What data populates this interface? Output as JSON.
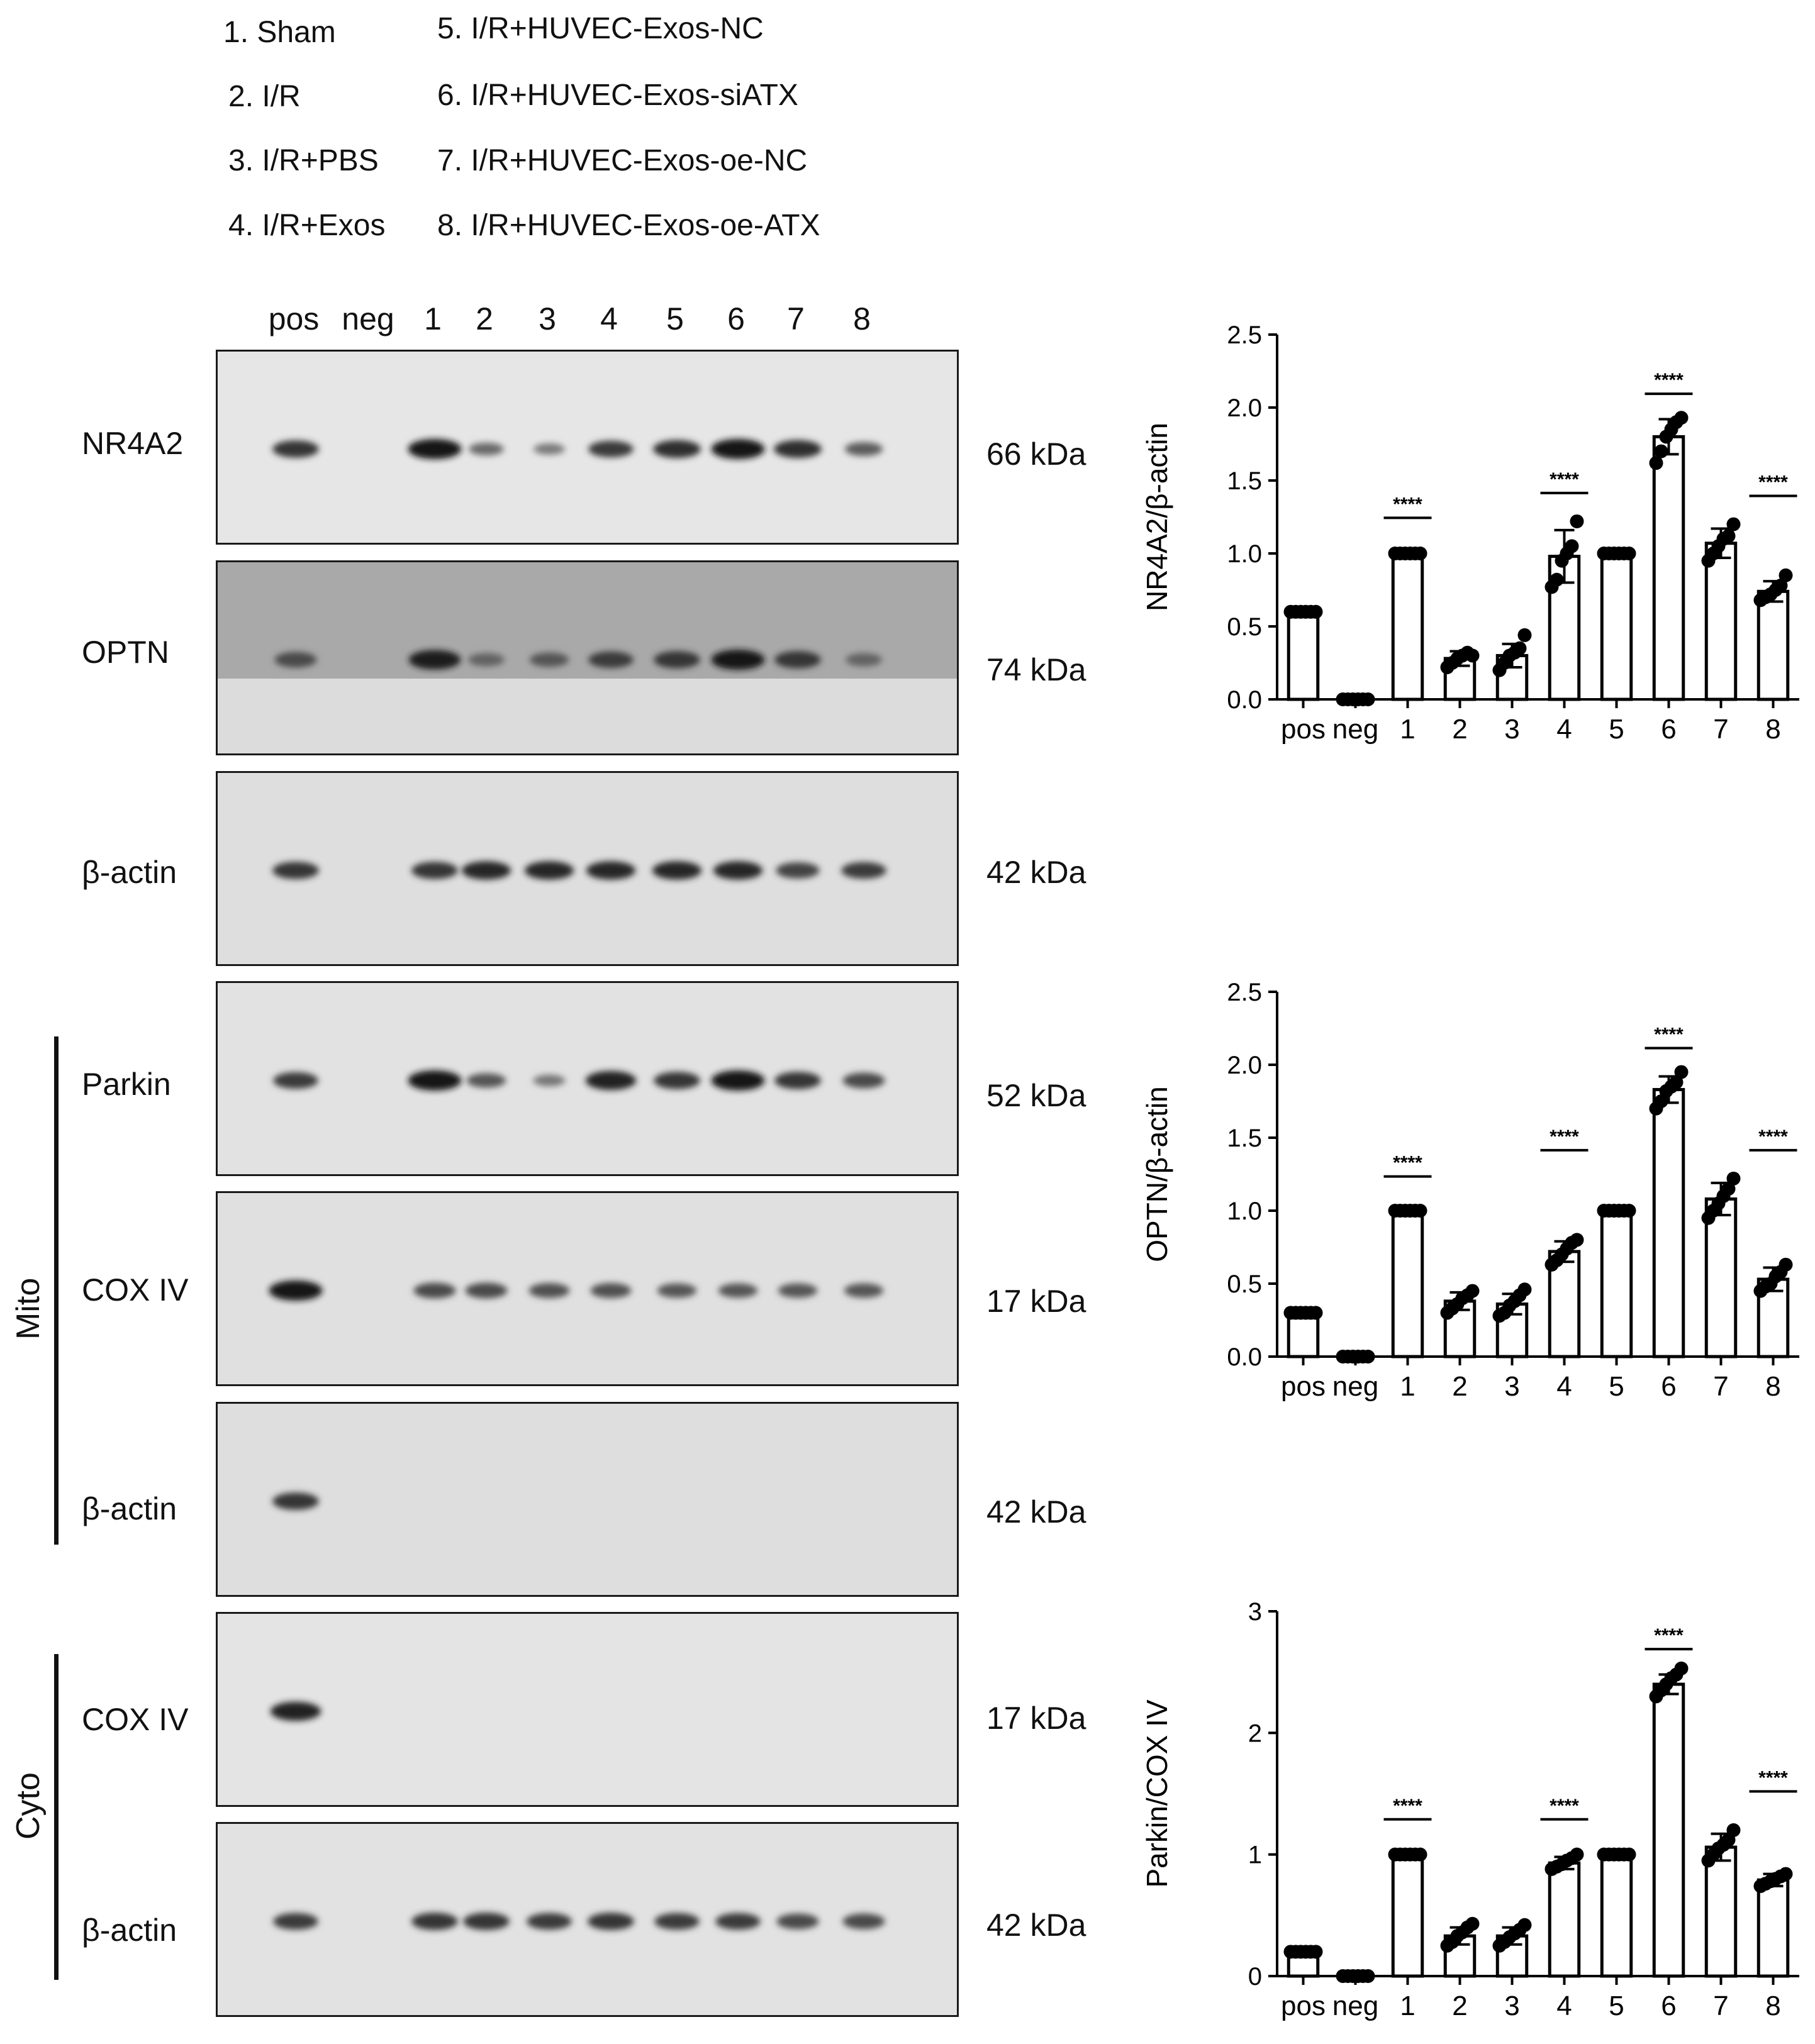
{
  "group_legend": [
    {
      "num": "1.",
      "label": "Sham"
    },
    {
      "num": "2.",
      "label": "I/R"
    },
    {
      "num": "3.",
      "label": "I/R+PBS"
    },
    {
      "num": "4.",
      "label": "I/R+Exos"
    },
    {
      "num": "5.",
      "label": "I/R+HUVEC-Exos-NC"
    },
    {
      "num": "6.",
      "label": "I/R+HUVEC-Exos-siATX"
    },
    {
      "num": "7.",
      "label": "I/R+HUVEC-Exos-oe-NC"
    },
    {
      "num": "8.",
      "label": "I/R+HUVEC-Exos-oe-ATX"
    }
  ],
  "lanes": [
    "pos",
    "neg",
    "1",
    "2",
    "3",
    "4",
    "5",
    "6",
    "7",
    "8"
  ],
  "groups": {
    "mito": "Mito",
    "cyto": "Cyto"
  },
  "blots": [
    {
      "protein": "NR4A2",
      "kda": "66 kDa",
      "bands": [
        0.75,
        0,
        1.0,
        0.35,
        0.22,
        0.7,
        0.8,
        1.0,
        0.8,
        0.45
      ]
    },
    {
      "protein": "OPTN",
      "kda": "74 kDa",
      "bands": [
        0.6,
        0,
        0.95,
        0.4,
        0.5,
        0.7,
        0.75,
        1.0,
        0.75,
        0.4
      ]
    },
    {
      "protein": "β-actin",
      "kda": "42 kDa",
      "bands": [
        0.75,
        0,
        0.75,
        0.85,
        0.85,
        0.85,
        0.85,
        0.85,
        0.65,
        0.7
      ]
    },
    {
      "protein": "Parkin",
      "kda": "52 kDa",
      "bands": [
        0.7,
        0,
        1.0,
        0.5,
        0.25,
        0.9,
        0.75,
        1.0,
        0.75,
        0.6
      ]
    },
    {
      "protein": "COX IV",
      "kda": "17 kDa",
      "bands": [
        1.0,
        0,
        0.6,
        0.6,
        0.55,
        0.55,
        0.5,
        0.5,
        0.5,
        0.5
      ]
    },
    {
      "protein": "β-actin",
      "kda": "42 kDa",
      "bands": [
        0.75,
        0,
        0,
        0,
        0,
        0,
        0,
        0,
        0,
        0
      ]
    },
    {
      "protein": "COX IV",
      "kda": "17 kDa",
      "bands": [
        0.9,
        0,
        0,
        0,
        0,
        0,
        0,
        0,
        0,
        0
      ]
    },
    {
      "protein": "β-actin",
      "kda": "42 kDa",
      "bands": [
        0.7,
        0,
        0.75,
        0.75,
        0.7,
        0.75,
        0.7,
        0.7,
        0.6,
        0.6
      ]
    }
  ],
  "chart_data": [
    {
      "type": "bar",
      "ylabel": "NR4A2/β-actin",
      "categories": [
        "pos",
        "neg",
        "1",
        "2",
        "3",
        "4",
        "5",
        "6",
        "7",
        "8"
      ],
      "values": [
        0.6,
        0.0,
        1.0,
        0.28,
        0.3,
        0.98,
        1.0,
        1.8,
        1.07,
        0.74
      ],
      "errors": [
        0.02,
        0.0,
        0.0,
        0.05,
        0.08,
        0.18,
        0.0,
        0.12,
        0.1,
        0.07
      ],
      "points": [
        [
          0.6,
          0.6,
          0.6,
          0.6,
          0.6,
          0.6
        ],
        [
          0,
          0,
          0,
          0,
          0,
          0
        ],
        [
          1,
          1,
          1,
          1,
          1,
          1
        ],
        [
          0.22,
          0.25,
          0.28,
          0.3,
          0.32,
          0.3
        ],
        [
          0.2,
          0.25,
          0.3,
          0.32,
          0.35,
          0.44
        ],
        [
          0.77,
          0.82,
          0.95,
          1.0,
          1.05,
          1.22
        ],
        [
          1,
          1,
          1,
          1,
          1,
          1
        ],
        [
          1.62,
          1.7,
          1.8,
          1.85,
          1.9,
          1.93
        ],
        [
          0.95,
          1.0,
          1.05,
          1.1,
          1.12,
          1.2
        ],
        [
          0.68,
          0.7,
          0.72,
          0.75,
          0.78,
          0.85
        ]
      ],
      "ylim": [
        0,
        2.5
      ],
      "yticks": [
        "0.0",
        "0.5",
        "1.0",
        "1.5",
        "2.0",
        "2.5"
      ],
      "significance": [
        {
          "x": "1",
          "y": 1.27,
          "label": "****"
        },
        {
          "x": "4",
          "y": 1.44,
          "label": "****"
        },
        {
          "x": "6",
          "y": 2.12,
          "label": "****"
        },
        {
          "x": "8",
          "y": 1.42,
          "label": "****"
        }
      ]
    },
    {
      "type": "bar",
      "ylabel": "OPTN/β-actin",
      "categories": [
        "pos",
        "neg",
        "1",
        "2",
        "3",
        "4",
        "5",
        "6",
        "7",
        "8"
      ],
      "values": [
        0.3,
        0.0,
        1.0,
        0.38,
        0.36,
        0.72,
        1.0,
        1.83,
        1.08,
        0.53
      ],
      "errors": [
        0.02,
        0.0,
        0.0,
        0.06,
        0.07,
        0.07,
        0.0,
        0.09,
        0.11,
        0.08
      ],
      "points": [
        [
          0.3,
          0.3,
          0.3,
          0.3,
          0.3,
          0.3
        ],
        [
          0,
          0,
          0,
          0,
          0,
          0
        ],
        [
          1,
          1,
          1,
          1,
          1,
          1
        ],
        [
          0.3,
          0.33,
          0.36,
          0.4,
          0.42,
          0.45
        ],
        [
          0.28,
          0.3,
          0.35,
          0.38,
          0.42,
          0.46
        ],
        [
          0.63,
          0.66,
          0.7,
          0.74,
          0.78,
          0.8
        ],
        [
          1,
          1,
          1,
          1,
          1,
          1
        ],
        [
          1.7,
          1.75,
          1.82,
          1.85,
          1.88,
          1.95
        ],
        [
          0.95,
          1.0,
          1.05,
          1.1,
          1.15,
          1.22
        ],
        [
          0.45,
          0.48,
          0.5,
          0.55,
          0.58,
          0.63
        ]
      ],
      "ylim": [
        0,
        2.5
      ],
      "yticks": [
        "0.0",
        "0.5",
        "1.0",
        "1.5",
        "2.0",
        "2.5"
      ],
      "significance": [
        {
          "x": "1",
          "y": 1.26,
          "label": "****"
        },
        {
          "x": "4",
          "y": 1.44,
          "label": "****"
        },
        {
          "x": "6",
          "y": 2.14,
          "label": "****"
        },
        {
          "x": "8",
          "y": 1.44,
          "label": "****"
        }
      ]
    },
    {
      "type": "bar",
      "ylabel": "Parkin/COX IV",
      "categories": [
        "pos",
        "neg",
        "1",
        "2",
        "3",
        "4",
        "5",
        "6",
        "7",
        "8"
      ],
      "values": [
        0.2,
        0.0,
        1.0,
        0.33,
        0.33,
        0.93,
        1.0,
        2.4,
        1.06,
        0.79
      ],
      "errors": [
        0.02,
        0.0,
        0.0,
        0.07,
        0.07,
        0.05,
        0.0,
        0.08,
        0.11,
        0.05
      ],
      "points": [
        [
          0.2,
          0.2,
          0.2,
          0.2,
          0.2,
          0.2
        ],
        [
          0,
          0,
          0,
          0,
          0,
          0
        ],
        [
          1,
          1,
          1,
          1,
          1,
          1
        ],
        [
          0.25,
          0.28,
          0.33,
          0.36,
          0.4,
          0.43
        ],
        [
          0.25,
          0.28,
          0.32,
          0.35,
          0.38,
          0.42
        ],
        [
          0.88,
          0.9,
          0.92,
          0.95,
          0.97,
          1.0
        ],
        [
          1,
          1,
          1,
          1,
          1,
          1
        ],
        [
          2.3,
          2.35,
          2.4,
          2.45,
          2.48,
          2.53
        ],
        [
          0.95,
          1.0,
          1.05,
          1.08,
          1.12,
          1.2
        ],
        [
          0.74,
          0.76,
          0.78,
          0.8,
          0.82,
          0.84
        ]
      ],
      "ylim": [
        0,
        3
      ],
      "yticks": [
        "0",
        "1",
        "2",
        "3"
      ],
      "significance": [
        {
          "x": "1",
          "y": 1.32,
          "label": "****"
        },
        {
          "x": "4",
          "y": 1.32,
          "label": "****"
        },
        {
          "x": "6",
          "y": 2.72,
          "label": "****"
        },
        {
          "x": "8",
          "y": 1.55,
          "label": "****"
        }
      ]
    }
  ]
}
